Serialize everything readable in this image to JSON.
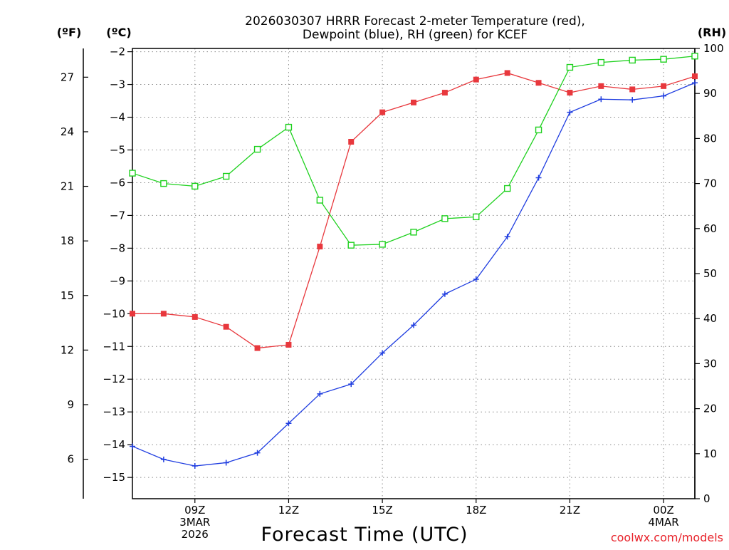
{
  "chart_data": {
    "type": "line",
    "title_lines": [
      "2026030307 HRRR Forecast 2-meter Temperature (red),",
      "Dewpoint (blue), RH (green) for KCEF"
    ],
    "x_ticks": [
      {
        "hour": 9,
        "lines": [
          "09Z",
          "3MAR",
          "2026"
        ]
      },
      {
        "hour": 12,
        "lines": [
          "12Z"
        ]
      },
      {
        "hour": 15,
        "lines": [
          "15Z"
        ]
      },
      {
        "hour": 18,
        "lines": [
          "18Z"
        ]
      },
      {
        "hour": 21,
        "lines": [
          "21Z"
        ]
      },
      {
        "hour": 24,
        "lines": [
          "00Z",
          "4MAR"
        ]
      }
    ],
    "xlim": [
      7,
      25
    ],
    "x": [
      7,
      8,
      9,
      10,
      11,
      12,
      13,
      14,
      15,
      16,
      17,
      18,
      19,
      20,
      21,
      22,
      23,
      24,
      25
    ],
    "xlabel": "Forecast Time (UTC)",
    "left_axis_f": {
      "unit_label": "(ºF)",
      "ticks": [
        6,
        9,
        12,
        15,
        18,
        21,
        24,
        27
      ]
    },
    "left_axis_c": {
      "unit_label": "(ºC)",
      "ticks": [
        -15,
        -14,
        -13,
        -12,
        -11,
        -10,
        -9,
        -8,
        -7,
        -6,
        -5,
        -4,
        -3,
        -2
      ],
      "ylim": [
        -15.65,
        -1.9
      ]
    },
    "right_axis_rh": {
      "unit_label": "(RH)",
      "ticks": [
        0,
        10,
        20,
        30,
        40,
        50,
        60,
        70,
        80,
        90,
        100
      ],
      "ylim": [
        0,
        100
      ]
    },
    "series": [
      {
        "name": "2-meter Temperature",
        "color": "#e8383d",
        "marker": "filled-square",
        "axis": "C",
        "values": [
          -10,
          -10,
          -10.1,
          -10.4,
          -11.05,
          -10.95,
          -7.95,
          -4.75,
          -3.85,
          -3.55,
          -3.25,
          -2.85,
          -2.65,
          -2.95,
          -3.25,
          -3.05,
          -3.15,
          -3.05,
          -2.75
        ]
      },
      {
        "name": "Dewpoint",
        "color": "#1f3de0",
        "marker": "plus",
        "axis": "C",
        "values": [
          -14.05,
          -14.45,
          -14.65,
          -14.55,
          -14.25,
          -13.35,
          -12.45,
          -12.15,
          -11.2,
          -10.35,
          -9.4,
          -8.95,
          -7.65,
          -5.85,
          -3.85,
          -3.45,
          -3.47,
          -3.35,
          -2.95
        ]
      },
      {
        "name": "RH",
        "color": "#1fd11f",
        "marker": "open-square",
        "axis": "RH",
        "values": [
          72.3,
          70,
          69.4,
          71.6,
          77.6,
          82.5,
          66.3,
          56.3,
          56.5,
          59.2,
          62.2,
          62.6,
          68.9,
          81.9,
          95.8,
          96.9,
          97.4,
          97.6,
          98.3
        ]
      }
    ]
  },
  "footer": {
    "credit": "coolwx.com/models"
  }
}
